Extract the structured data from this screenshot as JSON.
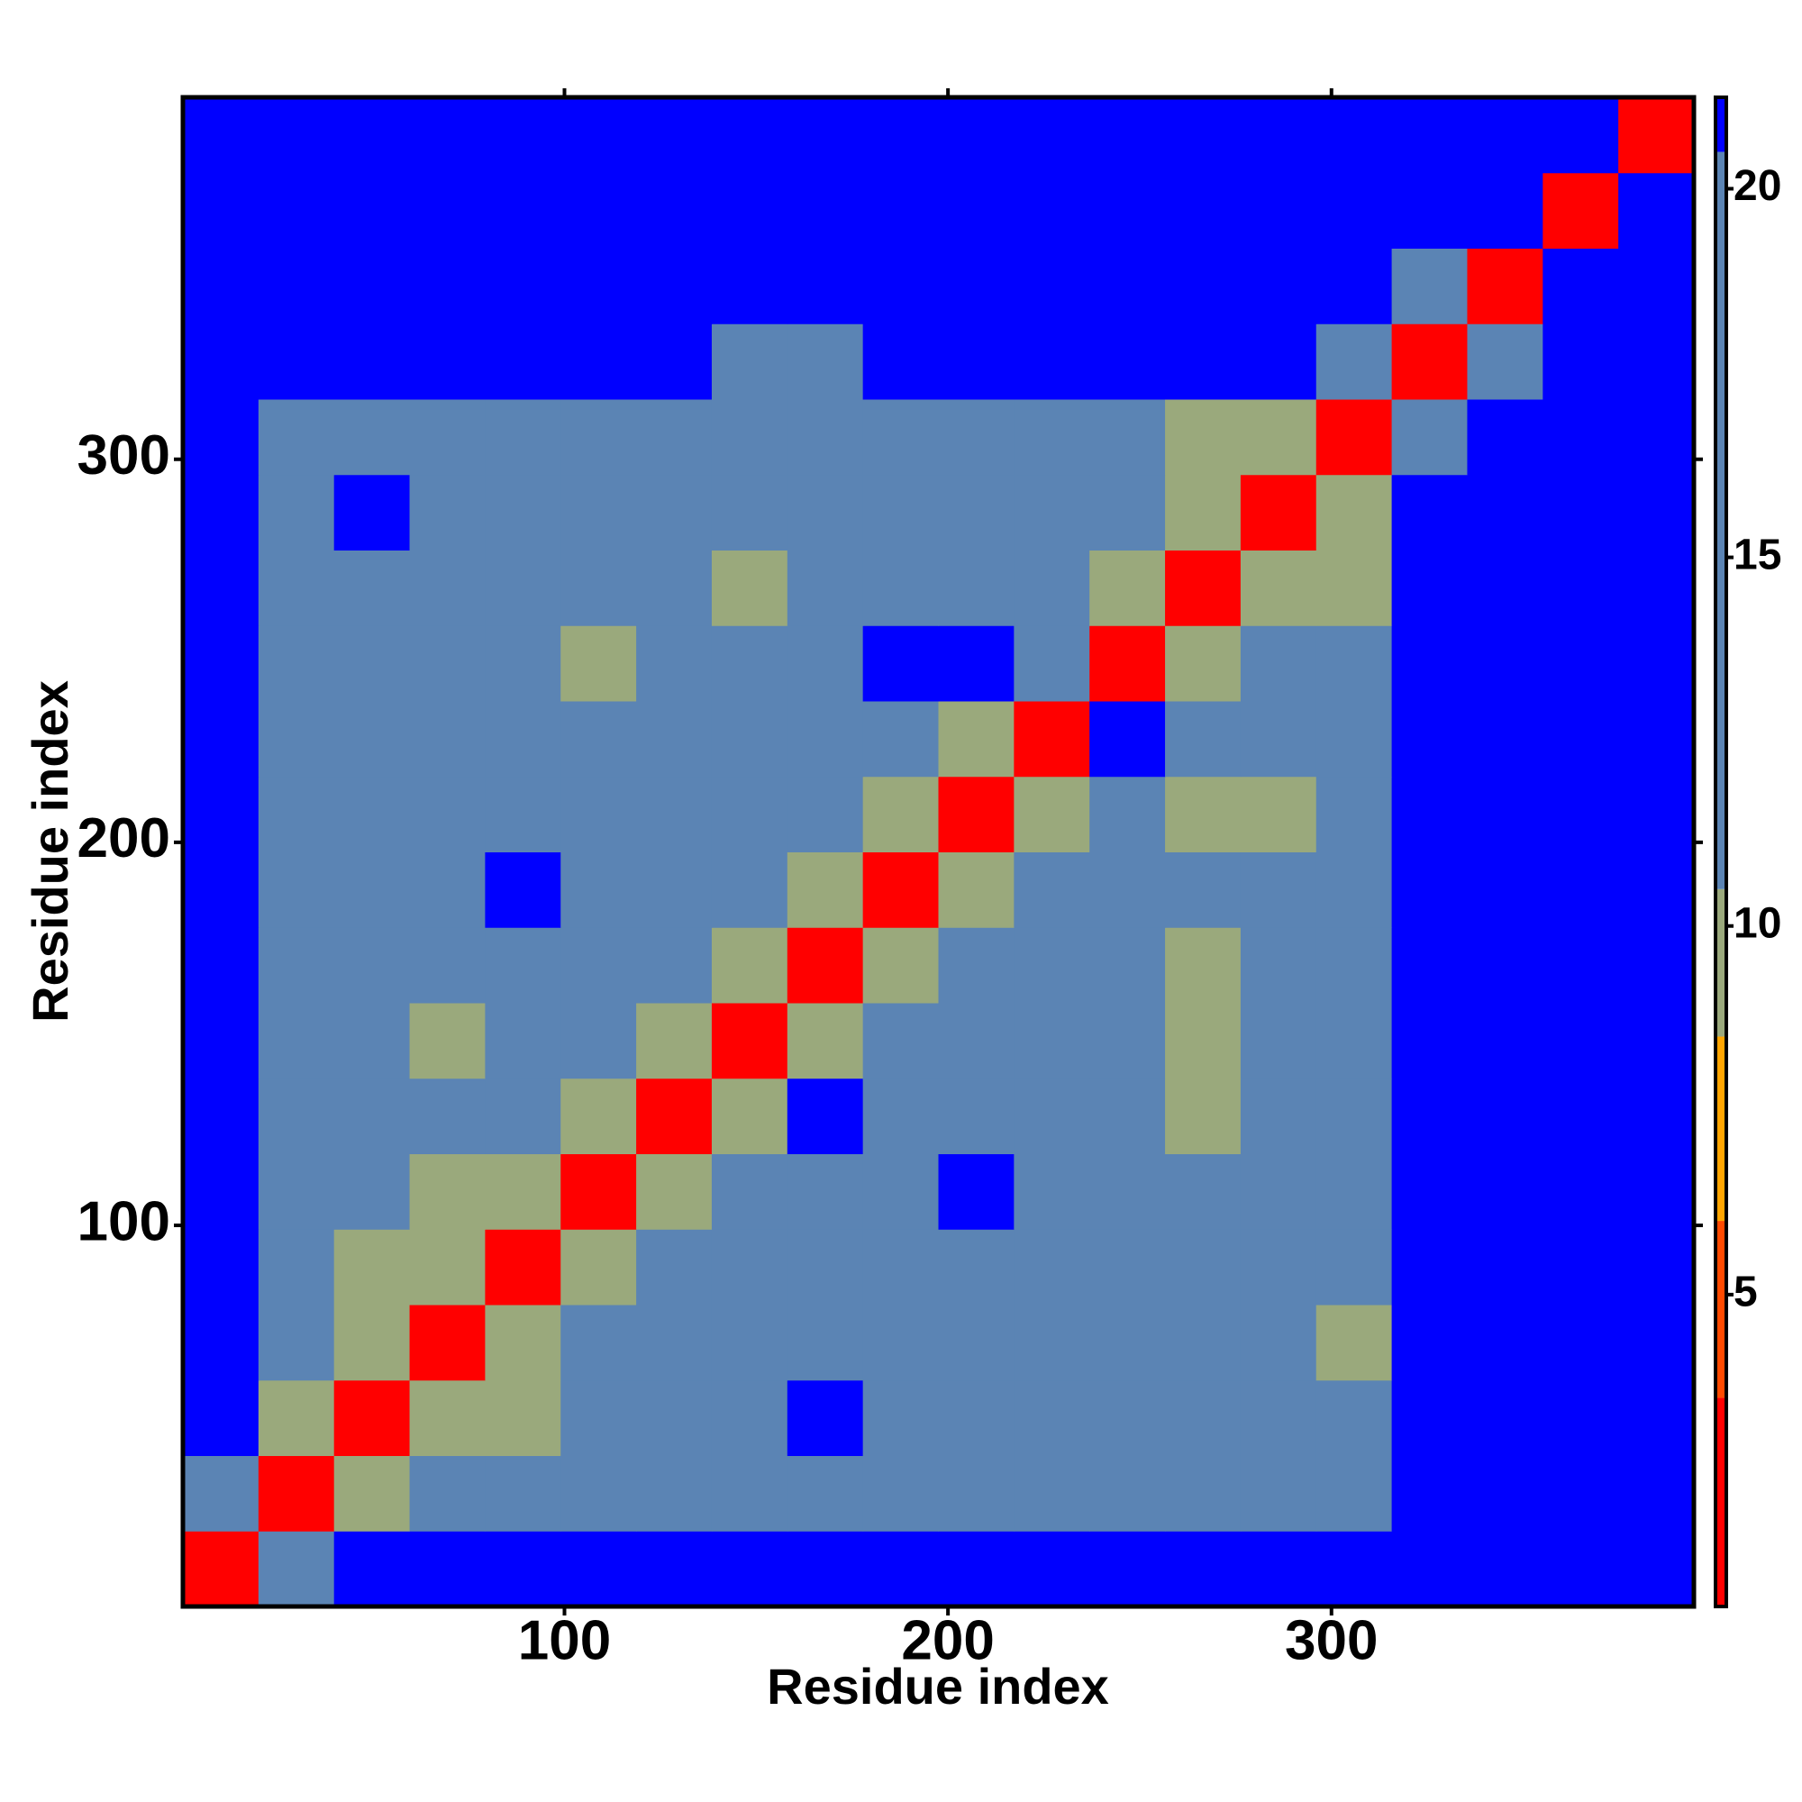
{
  "chart_data": {
    "type": "heatmap",
    "xlabel": "Residue index",
    "ylabel": "Residue index",
    "xlim": [
      0.5,
      394.5
    ],
    "ylim": [
      0.5,
      394.5
    ],
    "xticks": [
      100,
      200,
      300
    ],
    "yticks": [
      100,
      200,
      300
    ],
    "x_bins": [
      0.5,
      20.2,
      39.9,
      59.6,
      79.3,
      99.0,
      118.7,
      138.4,
      158.1,
      177.8,
      197.5,
      217.2,
      236.9,
      256.6,
      276.3,
      296.0,
      315.7,
      335.4,
      355.1,
      374.8,
      394.5
    ],
    "y_bins": [
      0.5,
      20.2,
      39.9,
      59.6,
      79.3,
      99.0,
      118.7,
      138.4,
      158.1,
      177.8,
      197.5,
      217.2,
      236.9,
      256.6,
      276.3,
      296.0,
      315.7,
      335.4,
      355.1,
      374.8,
      394.5
    ],
    "z": [
      [
        3,
        15,
        21,
        21,
        21,
        21,
        21,
        21,
        21,
        21,
        21,
        21,
        21,
        21,
        21,
        21,
        21,
        21,
        21,
        21
      ],
      [
        15,
        3,
        10,
        15,
        15,
        15,
        15,
        15,
        15,
        15,
        15,
        15,
        15,
        15,
        15,
        15,
        21,
        21,
        21,
        21
      ],
      [
        21,
        10,
        3,
        10,
        9,
        15,
        15,
        15,
        21,
        15,
        15,
        15,
        15,
        15,
        15,
        15,
        21,
        21,
        21,
        21
      ],
      [
        21,
        15,
        10,
        3,
        10,
        15,
        15,
        15,
        15,
        15,
        15,
        15,
        15,
        15,
        15,
        9,
        21,
        21,
        21,
        21
      ],
      [
        21,
        15,
        9,
        10,
        3,
        10,
        15,
        15,
        15,
        15,
        15,
        15,
        15,
        15,
        15,
        15,
        21,
        21,
        21,
        21
      ],
      [
        21,
        15,
        15,
        9,
        10,
        3,
        10,
        15,
        15,
        15,
        21,
        15,
        15,
        15,
        15,
        15,
        21,
        21,
        21,
        21
      ],
      [
        21,
        15,
        15,
        15,
        15,
        10,
        3,
        10,
        21,
        15,
        15,
        15,
        15,
        9,
        15,
        15,
        21,
        21,
        21,
        21
      ],
      [
        21,
        15,
        15,
        10,
        15,
        15,
        10,
        3,
        10,
        15,
        15,
        15,
        15,
        10,
        15,
        15,
        21,
        21,
        21,
        21
      ],
      [
        21,
        15,
        15,
        15,
        15,
        15,
        15,
        10,
        3,
        10,
        15,
        15,
        15,
        10,
        15,
        15,
        21,
        21,
        21,
        21
      ],
      [
        21,
        15,
        15,
        15,
        21,
        15,
        15,
        15,
        10,
        3,
        10,
        15,
        15,
        15,
        15,
        15,
        21,
        21,
        21,
        21
      ],
      [
        21,
        15,
        15,
        15,
        15,
        15,
        15,
        15,
        15,
        10,
        3,
        10,
        15,
        9,
        9,
        15,
        21,
        21,
        21,
        21
      ],
      [
        21,
        15,
        15,
        15,
        15,
        15,
        15,
        15,
        15,
        15,
        10,
        3,
        21,
        15,
        15,
        15,
        21,
        21,
        21,
        21
      ],
      [
        21,
        15,
        15,
        15,
        15,
        9,
        15,
        15,
        15,
        21,
        21,
        15,
        3,
        10,
        15,
        15,
        21,
        21,
        21,
        21
      ],
      [
        21,
        15,
        15,
        15,
        15,
        15,
        15,
        9,
        15,
        15,
        15,
        15,
        10,
        3,
        10,
        9,
        21,
        21,
        21,
        21
      ],
      [
        21,
        15,
        21,
        15,
        15,
        15,
        15,
        15,
        15,
        15,
        15,
        15,
        15,
        10,
        3,
        9,
        21,
        21,
        21,
        21
      ],
      [
        21,
        15,
        15,
        15,
        15,
        15,
        15,
        15,
        15,
        15,
        15,
        15,
        15,
        9,
        9,
        3,
        15,
        21,
        21,
        21
      ],
      [
        21,
        21,
        21,
        21,
        21,
        21,
        21,
        15,
        15,
        21,
        21,
        21,
        21,
        21,
        21,
        15,
        3,
        15,
        21,
        21
      ],
      [
        21,
        21,
        21,
        21,
        21,
        21,
        21,
        21,
        21,
        21,
        21,
        21,
        21,
        21,
        21,
        21,
        15,
        3,
        21,
        21
      ],
      [
        21,
        21,
        21,
        21,
        21,
        21,
        21,
        21,
        21,
        21,
        21,
        21,
        21,
        21,
        21,
        21,
        21,
        21,
        3,
        21
      ],
      [
        21,
        21,
        21,
        21,
        21,
        21,
        21,
        21,
        21,
        21,
        21,
        21,
        21,
        21,
        21,
        21,
        21,
        21,
        21,
        3
      ]
    ],
    "zlim": [
      0.77,
      21.24
    ],
    "zticks": [
      5,
      10,
      15,
      20
    ],
    "colorbar": [
      {
        "from": 0.77,
        "to": 3.6,
        "color": "#ff0000"
      },
      {
        "from": 3.6,
        "to": 6.0,
        "color": "#ff4a00"
      },
      {
        "from": 6.0,
        "to": 8.5,
        "color": "#ffa500"
      },
      {
        "from": 8.5,
        "to": 10.5,
        "color": "#9aa97c"
      },
      {
        "from": 10.5,
        "to": 20.5,
        "color": "#5b84b4"
      },
      {
        "from": 20.5,
        "to": 21.24,
        "color": "#0000ff"
      }
    ]
  }
}
